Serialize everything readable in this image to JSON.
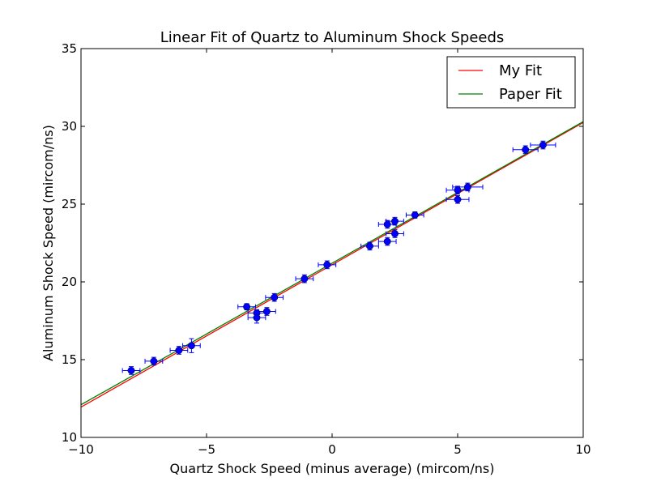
{
  "chart_data": {
    "type": "scatter",
    "title": "Linear Fit of Quartz to Aluminum Shock Speeds",
    "xlabel": "Quartz Shock Speed (minus average) (mircom/ns)",
    "ylabel": "Aluminum Shock Speed (mircom/ns)",
    "xlim": [
      -10,
      10
    ],
    "ylim": [
      10,
      35
    ],
    "xticks": [
      -10,
      -5,
      0,
      5,
      10
    ],
    "xtick_labels": [
      "−10",
      "−5",
      "0",
      "5",
      "10"
    ],
    "yticks": [
      10,
      15,
      20,
      25,
      30,
      35
    ],
    "ytick_labels": [
      "10",
      "15",
      "20",
      "25",
      "30",
      "35"
    ],
    "grid": false,
    "legend_position": "top-right",
    "data": {
      "color": "#0000ff",
      "points": [
        {
          "x": -8.0,
          "y": 14.3,
          "xerr": 0.35,
          "yerr": 0.25
        },
        {
          "x": -7.1,
          "y": 14.9,
          "xerr": 0.35,
          "yerr": 0.25
        },
        {
          "x": -6.1,
          "y": 15.6,
          "xerr": 0.35,
          "yerr": 0.25
        },
        {
          "x": -5.6,
          "y": 15.9,
          "xerr": 0.35,
          "yerr": 0.45
        },
        {
          "x": -3.4,
          "y": 18.4,
          "xerr": 0.35,
          "yerr": 0.2
        },
        {
          "x": -3.0,
          "y": 18.0,
          "xerr": 0.35,
          "yerr": 0.2
        },
        {
          "x": -3.0,
          "y": 17.7,
          "xerr": 0.35,
          "yerr": 0.35
        },
        {
          "x": -2.6,
          "y": 18.1,
          "xerr": 0.35,
          "yerr": 0.25
        },
        {
          "x": -2.3,
          "y": 19.0,
          "xerr": 0.35,
          "yerr": 0.25
        },
        {
          "x": -1.1,
          "y": 20.2,
          "xerr": 0.35,
          "yerr": 0.25
        },
        {
          "x": -0.2,
          "y": 21.1,
          "xerr": 0.35,
          "yerr": 0.25
        },
        {
          "x": 1.5,
          "y": 22.3,
          "xerr": 0.35,
          "yerr": 0.25
        },
        {
          "x": 2.2,
          "y": 22.6,
          "xerr": 0.35,
          "yerr": 0.25
        },
        {
          "x": 2.5,
          "y": 23.1,
          "xerr": 0.35,
          "yerr": 0.25
        },
        {
          "x": 2.2,
          "y": 23.7,
          "xerr": 0.35,
          "yerr": 0.25
        },
        {
          "x": 2.5,
          "y": 23.9,
          "xerr": 0.35,
          "yerr": 0.25
        },
        {
          "x": 3.3,
          "y": 24.3,
          "xerr": 0.35,
          "yerr": 0.2
        },
        {
          "x": 5.0,
          "y": 25.3,
          "xerr": 0.45,
          "yerr": 0.25
        },
        {
          "x": 5.0,
          "y": 25.9,
          "xerr": 0.45,
          "yerr": 0.25
        },
        {
          "x": 5.4,
          "y": 26.1,
          "xerr": 0.6,
          "yerr": 0.25
        },
        {
          "x": 7.7,
          "y": 28.5,
          "xerr": 0.5,
          "yerr": 0.25
        },
        {
          "x": 8.4,
          "y": 28.8,
          "xerr": 0.5,
          "yerr": 0.25
        }
      ]
    },
    "series": [
      {
        "name": "My Fit",
        "color": "#ff0000",
        "x": [
          -10,
          10
        ],
        "y": [
          11.95,
          30.25
        ]
      },
      {
        "name": "Paper Fit",
        "color": "#008000",
        "x": [
          -10,
          10
        ],
        "y": [
          12.1,
          30.3
        ]
      }
    ]
  }
}
